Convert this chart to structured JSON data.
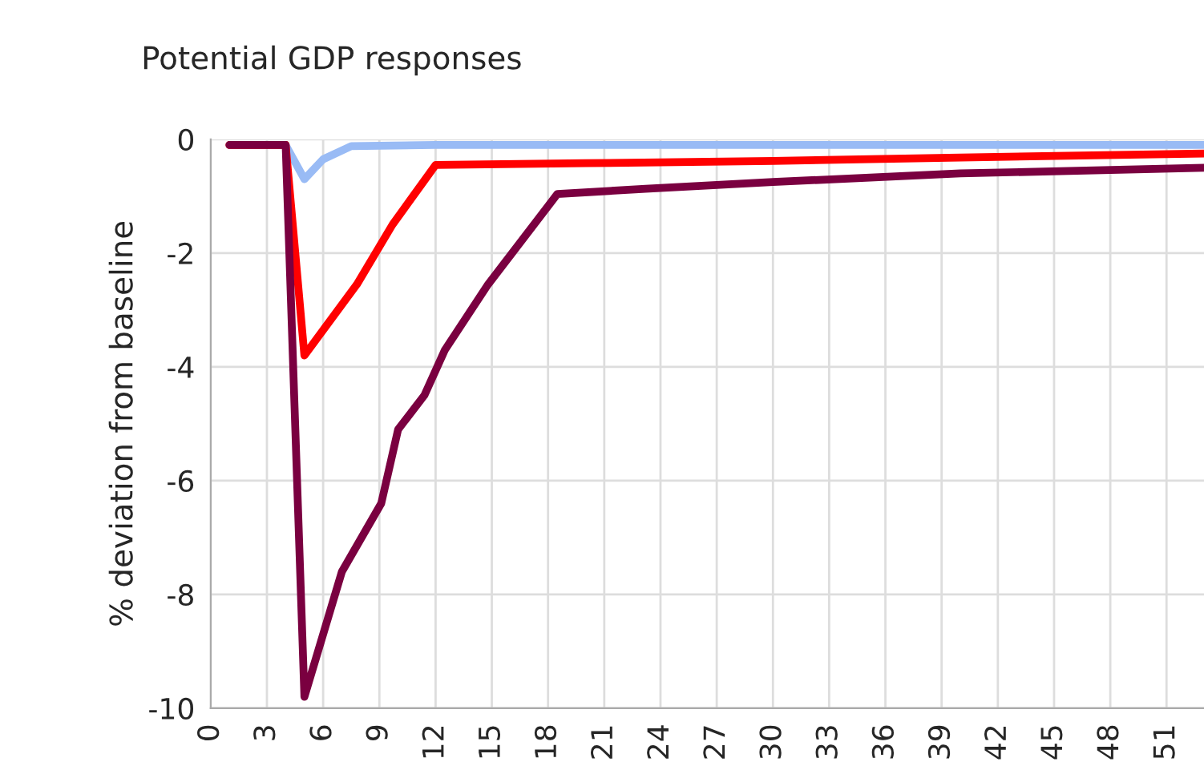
{
  "chart_data": {
    "type": "line",
    "title": "Potential GDP responses",
    "ylabel": "% deviation from baseline",
    "xlim": [
      0,
      53
    ],
    "xticks": [
      0,
      3,
      6,
      9,
      12,
      15,
      18,
      21,
      24,
      27,
      30,
      33,
      36,
      39,
      42,
      45,
      48,
      51
    ],
    "ylim": [
      -10,
      0
    ],
    "yticks": [
      0,
      -2,
      -4,
      -6,
      -8,
      -10
    ],
    "grid": true,
    "legend": false,
    "marker": "none",
    "line_style": "solid",
    "series": [
      {
        "color": "#99bbf5",
        "x": [
          4,
          5,
          6,
          7.5,
          12,
          20,
          30,
          40,
          53
        ],
        "values": [
          -0.1,
          -0.7,
          -0.35,
          -0.12,
          -0.1,
          -0.1,
          -0.1,
          -0.1,
          -0.1
        ]
      },
      {
        "color": "#ff0000",
        "x": [
          1,
          4,
          5,
          7.8,
          9.7,
          12,
          20,
          30,
          40,
          53
        ],
        "values": [
          -0.1,
          -0.1,
          -3.8,
          -2.55,
          -1.5,
          -0.45,
          -0.42,
          -0.38,
          -0.32,
          -0.25
        ]
      },
      {
        "color": "#7a0040",
        "x": [
          1,
          4,
          5,
          7,
          9.1,
          10,
          11.4,
          12.5,
          14.8,
          18.5,
          23.2,
          30,
          40,
          53
        ],
        "values": [
          -0.1,
          -0.1,
          -9.8,
          -7.6,
          -6.4,
          -5.1,
          -4.5,
          -3.7,
          -2.55,
          -0.96,
          -0.87,
          -0.75,
          -0.6,
          -0.5
        ]
      }
    ]
  }
}
